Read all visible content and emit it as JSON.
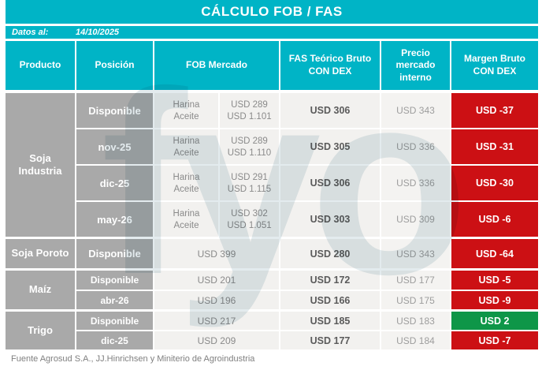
{
  "title": "CÁLCULO FOB / FAS",
  "date_label": "Datos al:",
  "date_value": "14/10/2025",
  "columns": {
    "producto": "Producto",
    "posicion": "Posición",
    "fob": "FOB Mercado",
    "fas": "FAS Teórico Bruto CON DEX",
    "precio": "Precio mercado interno",
    "margen": "Margen Bruto CON DEX"
  },
  "groups": [
    {
      "product": "Soja Industria",
      "rows": [
        {
          "position": "Disponible",
          "fob": [
            {
              "label": "Harina",
              "value": "USD 289"
            },
            {
              "label": "Aceite",
              "value": "USD 1.101"
            }
          ],
          "fas": "USD 306",
          "precio": "USD 343",
          "margen": "USD -37",
          "margen_type": "negative"
        },
        {
          "position": "nov-25",
          "fob": [
            {
              "label": "Harina",
              "value": "USD 289"
            },
            {
              "label": "Aceite",
              "value": "USD 1.110"
            }
          ],
          "fas": "USD 305",
          "precio": "USD 336",
          "margen": "USD -31",
          "margen_type": "negative"
        },
        {
          "position": "dic-25",
          "fob": [
            {
              "label": "Harina",
              "value": "USD 291"
            },
            {
              "label": "Aceite",
              "value": "USD 1.115"
            }
          ],
          "fas": "USD 306",
          "precio": "USD 336",
          "margen": "USD -30",
          "margen_type": "negative"
        },
        {
          "position": "may-26",
          "fob": [
            {
              "label": "Harina",
              "value": "USD 302"
            },
            {
              "label": "Aceite",
              "value": "USD 1.051"
            }
          ],
          "fas": "USD 303",
          "precio": "USD 309",
          "margen": "USD -6",
          "margen_type": "negative"
        }
      ]
    },
    {
      "product": "Soja Poroto",
      "rows": [
        {
          "position": "Disponible",
          "fob_single": "USD 399",
          "fas": "USD 280",
          "precio": "USD 343",
          "margen": "USD -64",
          "margen_type": "negative"
        }
      ]
    },
    {
      "product": "Maíz",
      "rows": [
        {
          "position": "Disponible",
          "fob_single": "USD 201",
          "fas": "USD 172",
          "precio": "USD 177",
          "margen": "USD -5",
          "margen_type": "negative"
        },
        {
          "position": "abr-26",
          "fob_single": "USD 196",
          "fas": "USD 166",
          "precio": "USD 175",
          "margen": "USD -9",
          "margen_type": "negative"
        }
      ]
    },
    {
      "product": "Trigo",
      "rows": [
        {
          "position": "Disponible",
          "fob_single": "USD 217",
          "fas": "USD 185",
          "precio": "USD 183",
          "margen": "USD 2",
          "margen_type": "positive"
        },
        {
          "position": "dic-25",
          "fob_single": "USD 209",
          "fas": "USD 177",
          "precio": "USD 184",
          "margen": "USD -7",
          "margen_type": "negative"
        }
      ]
    }
  ],
  "watermark": "fyo",
  "footer": "Fuente Agrosud S.A., JJ.Hinrichsen y Miniterio de Agroindustria",
  "colors": {
    "accent": "#00b4c6",
    "cellgray": "#a9a9a9",
    "celllight": "#f2f1ef",
    "negative": "#cc1014",
    "positive": "#0e9648"
  },
  "chart_data": {
    "type": "table",
    "title": "CÁLCULO FOB / FAS",
    "as_of": "14/10/2025",
    "columns": [
      "Producto",
      "Posición",
      "FOB Mercado",
      "FAS Teórico Bruto CON DEX (USD)",
      "Precio mercado interno (USD)",
      "Margen Bruto CON DEX (USD)"
    ],
    "rows": [
      [
        "Soja Industria",
        "Disponible",
        "Harina: USD 289 / Aceite: USD 1.101",
        306,
        343,
        -37
      ],
      [
        "Soja Industria",
        "nov-25",
        "Harina: USD 289 / Aceite: USD 1.110",
        305,
        336,
        -31
      ],
      [
        "Soja Industria",
        "dic-25",
        "Harina: USD 291 / Aceite: USD 1.115",
        306,
        336,
        -30
      ],
      [
        "Soja Industria",
        "may-26",
        "Harina: USD 302 / Aceite: USD 1.051",
        303,
        309,
        -6
      ],
      [
        "Soja Poroto",
        "Disponible",
        399,
        280,
        343,
        -64
      ],
      [
        "Maíz",
        "Disponible",
        201,
        172,
        177,
        -5
      ],
      [
        "Maíz",
        "abr-26",
        196,
        166,
        175,
        -9
      ],
      [
        "Trigo",
        "Disponible",
        217,
        185,
        183,
        2
      ],
      [
        "Trigo",
        "dic-25",
        209,
        177,
        184,
        -7
      ]
    ],
    "legend_position": "none",
    "notes": "Margen negativo en rojo, positivo en verde"
  }
}
